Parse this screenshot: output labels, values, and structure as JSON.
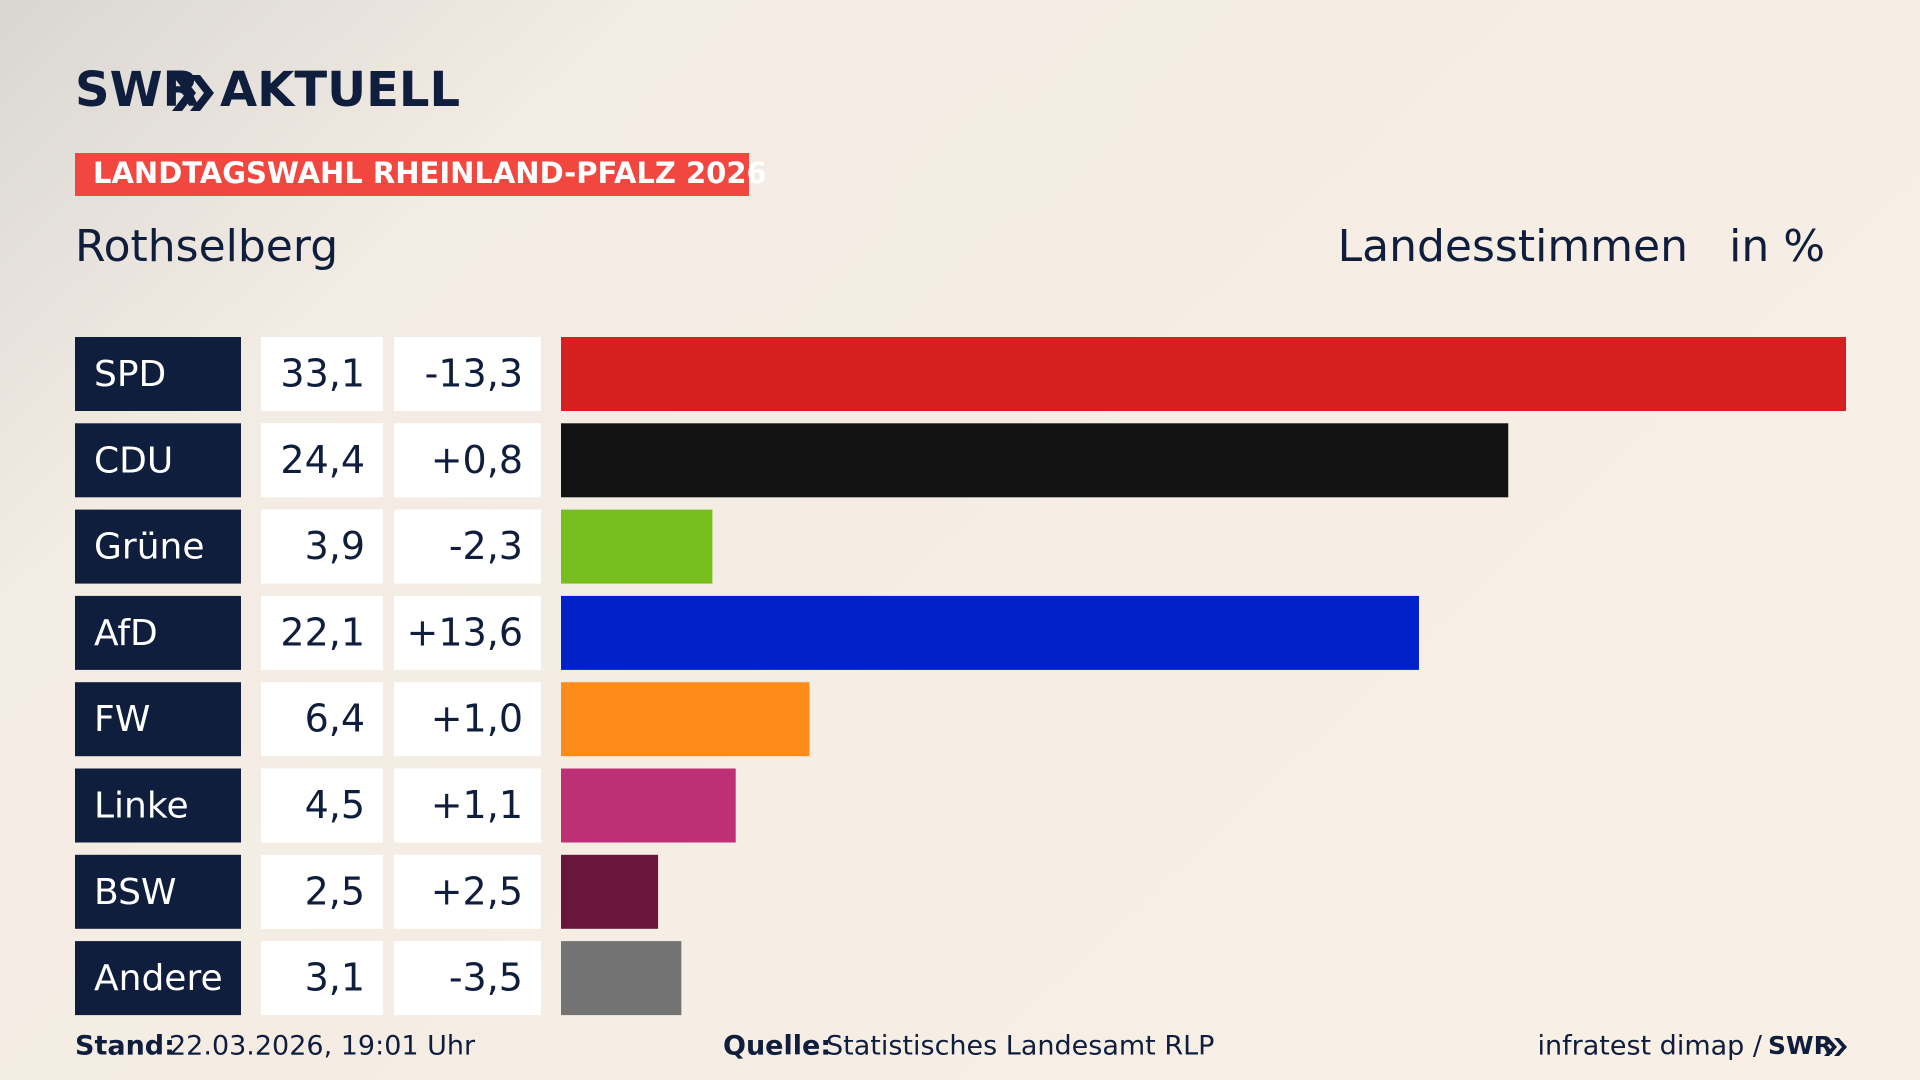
{
  "header": {
    "logo": "SWR",
    "brand": "AKTUELL",
    "badge": "LANDTAGSWAHL RHEINLAND-PFALZ 2026"
  },
  "chart_data": {
    "type": "bar",
    "title": "Rothselberg",
    "measure": "Landesstimmen",
    "unit": "in %",
    "categories": [
      "SPD",
      "CDU",
      "Grüne",
      "AfD",
      "FW",
      "Linke",
      "BSW",
      "Andere"
    ],
    "values": [
      33.1,
      24.4,
      3.9,
      22.1,
      6.4,
      4.5,
      2.5,
      3.1
    ],
    "value_labels": [
      "33,1",
      "24,4",
      "3,9",
      "22,1",
      "6,4",
      "4,5",
      "2,5",
      "3,1"
    ],
    "changes": [
      -13.3,
      0.8,
      -2.3,
      13.6,
      1.0,
      1.1,
      2.5,
      -3.5
    ],
    "change_labels": [
      "-13,3",
      "+0,8",
      "-2,3",
      "+13,6",
      "+1,0",
      "+1,1",
      "+2,5",
      "-3,5"
    ],
    "colors": [
      "#d61f1f",
      "#121212",
      "#78bd1e",
      "#0021c8",
      "#ff8c1a",
      "#bd3075",
      "#6a163c",
      "#737373"
    ]
  },
  "footer": {
    "date_label": "Stand:",
    "date": "22.03.2026, 19:01 Uhr",
    "source_label": "Quelle:",
    "source": "Statistisches Landesamt RLP",
    "credit": "infratest dimap /",
    "credit_logo": "SWR"
  }
}
